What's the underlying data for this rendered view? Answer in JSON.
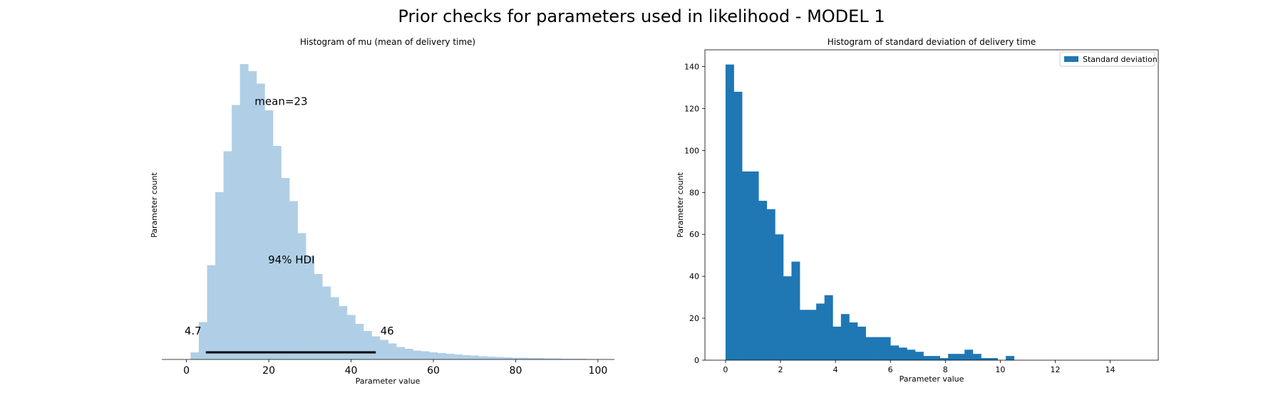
{
  "figure": {
    "title": "Prior checks for parameters used in likelihood - MODEL 1"
  },
  "chart_data": [
    {
      "type": "bar",
      "title": "Histogram of mu (mean of delivery time)",
      "xlabel": "Parameter value",
      "ylabel": "Parameter count",
      "xlim": [
        -6,
        104
      ],
      "ylim": [
        0,
        83
      ],
      "xticks": [
        0,
        20,
        40,
        60,
        80,
        100
      ],
      "grid": false,
      "color": "#b0cfe6",
      "bin_width": 2,
      "bins": [
        {
          "x0": 1,
          "count": 2
        },
        {
          "x0": 3,
          "count": 10.5
        },
        {
          "x0": 5,
          "count": 26.5
        },
        {
          "x0": 7,
          "count": 47
        },
        {
          "x0": 9,
          "count": 58.5
        },
        {
          "x0": 11,
          "count": 71.5
        },
        {
          "x0": 13,
          "count": 83
        },
        {
          "x0": 15,
          "count": 81
        },
        {
          "x0": 17,
          "count": 77.5
        },
        {
          "x0": 19,
          "count": 70
        },
        {
          "x0": 21,
          "count": 60
        },
        {
          "x0": 23,
          "count": 51
        },
        {
          "x0": 25,
          "count": 44.5
        },
        {
          "x0": 27,
          "count": 35.5
        },
        {
          "x0": 29,
          "count": 29
        },
        {
          "x0": 31,
          "count": 24
        },
        {
          "x0": 33,
          "count": 20.5
        },
        {
          "x0": 35,
          "count": 17.5
        },
        {
          "x0": 37,
          "count": 15
        },
        {
          "x0": 39,
          "count": 12.5
        },
        {
          "x0": 41,
          "count": 10
        },
        {
          "x0": 43,
          "count": 8
        },
        {
          "x0": 45,
          "count": 6.5
        },
        {
          "x0": 47,
          "count": 5.5
        },
        {
          "x0": 49,
          "count": 4.5
        },
        {
          "x0": 51,
          "count": 3.5
        },
        {
          "x0": 53,
          "count": 3
        },
        {
          "x0": 55,
          "count": 2.5
        },
        {
          "x0": 57,
          "count": 2.3
        },
        {
          "x0": 59,
          "count": 2.0
        },
        {
          "x0": 61,
          "count": 1.8
        },
        {
          "x0": 63,
          "count": 1.6
        },
        {
          "x0": 65,
          "count": 1.4
        },
        {
          "x0": 67,
          "count": 1.2
        },
        {
          "x0": 69,
          "count": 1.1
        },
        {
          "x0": 71,
          "count": 0.9
        },
        {
          "x0": 73,
          "count": 0.8
        },
        {
          "x0": 75,
          "count": 0.7
        },
        {
          "x0": 77,
          "count": 0.6
        },
        {
          "x0": 79,
          "count": 0.5
        },
        {
          "x0": 81,
          "count": 0.5
        },
        {
          "x0": 83,
          "count": 0.4
        },
        {
          "x0": 85,
          "count": 0.4
        },
        {
          "x0": 87,
          "count": 0.3
        },
        {
          "x0": 89,
          "count": 0.3
        },
        {
          "x0": 91,
          "count": 0.2
        },
        {
          "x0": 93,
          "count": 0.2
        },
        {
          "x0": 95,
          "count": 0.2
        },
        {
          "x0": 97,
          "count": 0.1
        }
      ],
      "hdi": {
        "low": 4.7,
        "high": 46,
        "low_label": "4.7",
        "high_label": "46",
        "label": "94% HDI",
        "label_x": 25.5,
        "label_y": 27
      },
      "mean": {
        "value": 23,
        "label": "mean=23",
        "label_x": 23,
        "label_y": 71.5
      }
    },
    {
      "type": "bar",
      "title": "Histogram of standard deviation of delivery time",
      "xlabel": "Parameter value",
      "ylabel": "Parameter count",
      "xlim": [
        -0.75,
        15.75
      ],
      "ylim": [
        0,
        148
      ],
      "xticks": [
        0,
        2,
        4,
        6,
        8,
        10,
        12,
        14
      ],
      "yticks": [
        0,
        20,
        40,
        60,
        80,
        100,
        120,
        140
      ],
      "grid": false,
      "legend": {
        "placement": "top-right",
        "entries": [
          "Standard deviation"
        ]
      },
      "color": "#1f77b4",
      "bin_width": 0.3,
      "bins": [
        {
          "x0": 0.0,
          "count": 141
        },
        {
          "x0": 0.3,
          "count": 128
        },
        {
          "x0": 0.6,
          "count": 90
        },
        {
          "x0": 0.9,
          "count": 90
        },
        {
          "x0": 1.2,
          "count": 76
        },
        {
          "x0": 1.5,
          "count": 72
        },
        {
          "x0": 1.8,
          "count": 60
        },
        {
          "x0": 2.1,
          "count": 40
        },
        {
          "x0": 2.4,
          "count": 47
        },
        {
          "x0": 2.7,
          "count": 24
        },
        {
          "x0": 3.0,
          "count": 24
        },
        {
          "x0": 3.3,
          "count": 27
        },
        {
          "x0": 3.6,
          "count": 31
        },
        {
          "x0": 3.9,
          "count": 16
        },
        {
          "x0": 4.2,
          "count": 22
        },
        {
          "x0": 4.5,
          "count": 18
        },
        {
          "x0": 4.8,
          "count": 16
        },
        {
          "x0": 5.1,
          "count": 11
        },
        {
          "x0": 5.4,
          "count": 11
        },
        {
          "x0": 5.7,
          "count": 11
        },
        {
          "x0": 6.0,
          "count": 7
        },
        {
          "x0": 6.3,
          "count": 6
        },
        {
          "x0": 6.6,
          "count": 5
        },
        {
          "x0": 6.9,
          "count": 4
        },
        {
          "x0": 7.2,
          "count": 2
        },
        {
          "x0": 7.5,
          "count": 2
        },
        {
          "x0": 7.8,
          "count": 1
        },
        {
          "x0": 8.1,
          "count": 3
        },
        {
          "x0": 8.4,
          "count": 3
        },
        {
          "x0": 8.7,
          "count": 5
        },
        {
          "x0": 9.0,
          "count": 3
        },
        {
          "x0": 9.3,
          "count": 1
        },
        {
          "x0": 9.6,
          "count": 1
        },
        {
          "x0": 9.9,
          "count": 0
        },
        {
          "x0": 10.2,
          "count": 2
        }
      ]
    }
  ]
}
